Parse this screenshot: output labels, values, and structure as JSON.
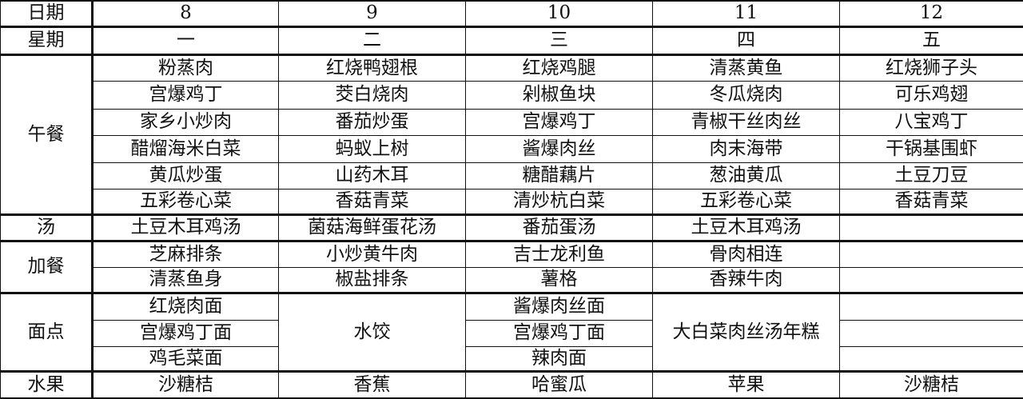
{
  "labels": {
    "date": "日期",
    "weekday": "星期",
    "lunch": "午餐",
    "soup": "汤",
    "extra": "加餐",
    "noodles": "面点",
    "fruit": "水果"
  },
  "dates": [
    "8",
    "9",
    "10",
    "11",
    "12"
  ],
  "weekdays": [
    "一",
    "二",
    "三",
    "四",
    "五"
  ],
  "lunch": [
    [
      "粉蒸肉",
      "红烧鸭翅根",
      "红烧鸡腿",
      "清蒸黄鱼",
      "红烧狮子头"
    ],
    [
      "宫爆鸡丁",
      "茭白烧肉",
      "剁椒鱼块",
      "冬瓜烧肉",
      "可乐鸡翅"
    ],
    [
      "家乡小炒肉",
      "番茄炒蛋",
      "宫爆鸡丁",
      "青椒干丝肉丝",
      "八宝鸡丁"
    ],
    [
      "醋熘海米白菜",
      "蚂蚁上树",
      "酱爆肉丝",
      "肉末海带",
      "干锅基围虾"
    ],
    [
      "黄瓜炒蛋",
      "山药木耳",
      "糖醋藕片",
      "葱油黄瓜",
      "土豆刀豆"
    ],
    [
      "五彩卷心菜",
      "香菇青菜",
      "清炒杭白菜",
      "五彩卷心菜",
      "香菇青菜"
    ]
  ],
  "soup": [
    "土豆木耳鸡汤",
    "菌菇海鲜蛋花汤",
    "番茄蛋汤",
    "土豆木耳鸡汤",
    ""
  ],
  "extra": [
    [
      "芝麻排条",
      "小炒黄牛肉",
      "吉士龙利鱼",
      "骨肉相连",
      ""
    ],
    [
      "清蒸鱼身",
      "椒盐排条",
      "薯格",
      "香辣牛肉",
      ""
    ]
  ],
  "noodles": {
    "mon": [
      "红烧肉面",
      "宫爆鸡丁面",
      "鸡毛菜面"
    ],
    "tue": "水饺",
    "wed": [
      "酱爆肉丝面",
      "宫爆鸡丁面",
      "辣肉面"
    ],
    "thu": "大白菜肉丝汤年糕",
    "fri": [
      "",
      "",
      ""
    ]
  },
  "fruit": [
    "沙糖桔",
    "香蕉",
    "哈蜜瓜",
    "苹果",
    "沙糖桔"
  ]
}
